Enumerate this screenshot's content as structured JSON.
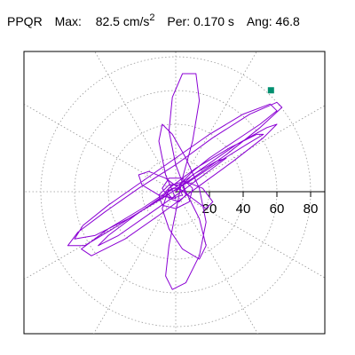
{
  "header": {
    "station": "PPQR",
    "max_label": "Max:",
    "max_value": "82.5",
    "max_units": "cm/s",
    "max_exp": "2",
    "period_label": "Per:",
    "period_value": "0.170 s",
    "angle_label": "Ang:",
    "angle_value": "46.8"
  },
  "chart_data": {
    "type": "polar-particle-motion",
    "grid": true,
    "radial_ticks": [
      "20",
      "40",
      "60",
      "80"
    ],
    "radial_max": 90,
    "colors": {
      "trace": "#8B00D4",
      "marker": "#009070",
      "grid": "#999999",
      "frame": "#000000"
    },
    "max_point": {
      "r": 82.5,
      "angle_deg": 46.8
    },
    "trace": [
      [
        0,
        0
      ],
      [
        4,
        6
      ],
      [
        10,
        12
      ],
      [
        20,
        20
      ],
      [
        35,
        30
      ],
      [
        50,
        40
      ],
      [
        60,
        48
      ],
      [
        56,
        52
      ],
      [
        40,
        46
      ],
      [
        20,
        34
      ],
      [
        0,
        20
      ],
      [
        -20,
        6
      ],
      [
        -40,
        -8
      ],
      [
        -55,
        -20
      ],
      [
        -60,
        -28
      ],
      [
        -48,
        -26
      ],
      [
        -28,
        -16
      ],
      [
        -8,
        -4
      ],
      [
        10,
        8
      ],
      [
        30,
        22
      ],
      [
        50,
        38
      ],
      [
        63,
        50
      ],
      [
        60,
        53
      ],
      [
        44,
        46
      ],
      [
        22,
        32
      ],
      [
        0,
        16
      ],
      [
        -22,
        2
      ],
      [
        -42,
        -12
      ],
      [
        -58,
        -24
      ],
      [
        -64,
        -32
      ],
      [
        -54,
        -32
      ],
      [
        -34,
        -20
      ],
      [
        -12,
        -6
      ],
      [
        8,
        6
      ],
      [
        26,
        18
      ],
      [
        42,
        28
      ],
      [
        52,
        34
      ],
      [
        48,
        34
      ],
      [
        32,
        26
      ],
      [
        12,
        14
      ],
      [
        -4,
        2
      ],
      [
        -8,
        -10
      ],
      [
        -4,
        -22
      ],
      [
        4,
        -34
      ],
      [
        14,
        -40
      ],
      [
        18,
        -32
      ],
      [
        14,
        -16
      ],
      [
        6,
        0
      ],
      [
        0,
        16
      ],
      [
        -4,
        36
      ],
      [
        -2,
        56
      ],
      [
        4,
        70
      ],
      [
        12,
        70
      ],
      [
        14,
        54
      ],
      [
        10,
        30
      ],
      [
        4,
        8
      ],
      [
        0,
        -12
      ],
      [
        -4,
        -32
      ],
      [
        -6,
        -50
      ],
      [
        -2,
        -58
      ],
      [
        6,
        -54
      ],
      [
        14,
        -38
      ],
      [
        18,
        -18
      ],
      [
        14,
        2
      ],
      [
        6,
        20
      ],
      [
        -2,
        34
      ],
      [
        -8,
        40
      ],
      [
        -10,
        30
      ],
      [
        -6,
        10
      ],
      [
        0,
        -4
      ],
      [
        -10,
        -2
      ],
      [
        -20,
        4
      ],
      [
        -22,
        10
      ],
      [
        -16,
        12
      ],
      [
        -6,
        8
      ],
      [
        2,
        2
      ],
      [
        10,
        -4
      ],
      [
        18,
        -10
      ],
      [
        22,
        -6
      ],
      [
        16,
        2
      ],
      [
        6,
        6
      ],
      [
        -4,
        4
      ],
      [
        -10,
        -2
      ],
      [
        -8,
        -8
      ],
      [
        0,
        -10
      ],
      [
        8,
        -6
      ],
      [
        10,
        2
      ],
      [
        4,
        8
      ],
      [
        -4,
        8
      ],
      [
        -8,
        2
      ],
      [
        -4,
        -4
      ],
      [
        2,
        -6
      ],
      [
        6,
        -2
      ],
      [
        4,
        4
      ],
      [
        -2,
        4
      ],
      [
        -6,
        0
      ],
      [
        -2,
        -4
      ],
      [
        4,
        -2
      ],
      [
        2,
        2
      ],
      [
        -2,
        2
      ],
      [
        -20,
        -10
      ],
      [
        -40,
        -22
      ],
      [
        -56,
        -34
      ],
      [
        -50,
        -38
      ],
      [
        -30,
        -28
      ],
      [
        -10,
        -14
      ],
      [
        12,
        2
      ],
      [
        34,
        18
      ],
      [
        52,
        32
      ],
      [
        60,
        40
      ],
      [
        54,
        38
      ],
      [
        36,
        28
      ],
      [
        16,
        14
      ],
      [
        -4,
        0
      ],
      [
        -24,
        -14
      ],
      [
        -40,
        -26
      ],
      [
        -46,
        -32
      ],
      [
        -34,
        -26
      ],
      [
        -14,
        -12
      ],
      [
        6,
        2
      ],
      [
        22,
        14
      ],
      [
        30,
        20
      ],
      [
        24,
        18
      ],
      [
        10,
        10
      ],
      [
        0,
        0
      ]
    ]
  }
}
